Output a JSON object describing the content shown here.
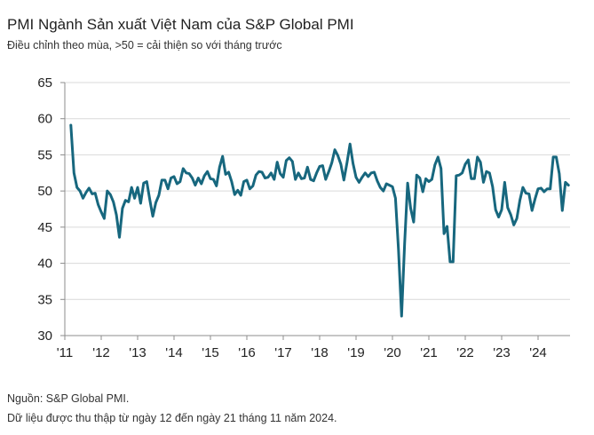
{
  "title": "PMI Ngành Sản xuất Việt Nam của S&P Global PMI",
  "subtitle": "Điều chỉnh theo mùa, >50 = cải thiện so với tháng trước",
  "footer": {
    "source": "Nguồn: S&P Global PMI.",
    "note": "Dữ liệu được thu thập từ ngày 12 đến ngày 21 tháng 11 năm 2024."
  },
  "chart_data": {
    "type": "line",
    "title": "PMI Ngành Sản xuất Việt Nam của S&P Global PMI",
    "xlabel": "",
    "ylabel": "",
    "ylim": [
      30,
      65
    ],
    "yticks": [
      "30",
      "35",
      "40",
      "45",
      "50",
      "55",
      "60",
      "65"
    ],
    "xticks": [
      "'11",
      "'12",
      "'13",
      "'14",
      "'15",
      "'16",
      "'17",
      "'18",
      "'19",
      "'20",
      "'21",
      "'22",
      "'23",
      "'24"
    ],
    "grid": true,
    "line_color": "#17677e",
    "start": "2011-03",
    "frequency": "monthly",
    "end": "2024-11",
    "values": [
      59.1,
      52.5,
      50.5,
      50.0,
      49.0,
      49.8,
      50.4,
      49.6,
      49.7,
      48.1,
      47.1,
      46.2,
      50.0,
      49.5,
      48.5,
      46.7,
      43.6,
      47.6,
      48.7,
      48.5,
      50.5,
      49.0,
      50.5,
      48.3,
      51.1,
      51.3,
      48.8,
      46.5,
      48.4,
      49.4,
      51.5,
      51.5,
      50.3,
      51.8,
      52.0,
      51.0,
      51.3,
      53.1,
      52.5,
      52.4,
      51.8,
      50.8,
      51.8,
      51.0,
      52.1,
      52.7,
      51.7,
      51.6,
      50.7,
      53.3,
      54.8,
      52.3,
      52.6,
      51.3,
      49.5,
      50.1,
      49.4,
      51.3,
      51.5,
      50.3,
      50.7,
      52.2,
      52.7,
      52.6,
      51.8,
      51.9,
      52.5,
      51.6,
      54.0,
      52.4,
      51.9,
      54.2,
      54.6,
      54.1,
      51.6,
      52.5,
      51.7,
      51.8,
      53.3,
      51.6,
      51.4,
      52.5,
      53.4,
      53.5,
      51.6,
      52.7,
      53.9,
      55.7,
      54.9,
      53.7,
      51.5,
      53.9,
      56.5,
      53.8,
      51.9,
      51.2,
      51.9,
      52.5,
      52.0,
      52.5,
      52.6,
      51.4,
      50.5,
      50.0,
      51.0,
      50.8,
      50.6,
      49.0,
      41.9,
      32.7,
      42.7,
      51.1,
      47.6,
      45.7,
      52.2,
      51.8,
      49.9,
      51.7,
      51.3,
      51.6,
      53.6,
      54.7,
      53.1,
      44.1,
      45.1,
      40.2,
      40.2,
      52.1,
      52.2,
      52.5,
      53.7,
      54.3,
      51.7,
      51.7,
      54.7,
      54.0,
      51.2,
      52.7,
      52.5,
      50.6,
      47.4,
      46.4,
      47.4,
      51.2,
      47.7,
      46.7,
      45.3,
      46.2,
      48.7,
      50.5,
      49.7,
      49.6,
      47.3,
      48.9,
      50.3,
      50.4,
      49.9,
      50.3,
      50.3,
      54.7,
      54.7,
      52.4,
      47.3,
      51.2,
      50.8
    ]
  }
}
